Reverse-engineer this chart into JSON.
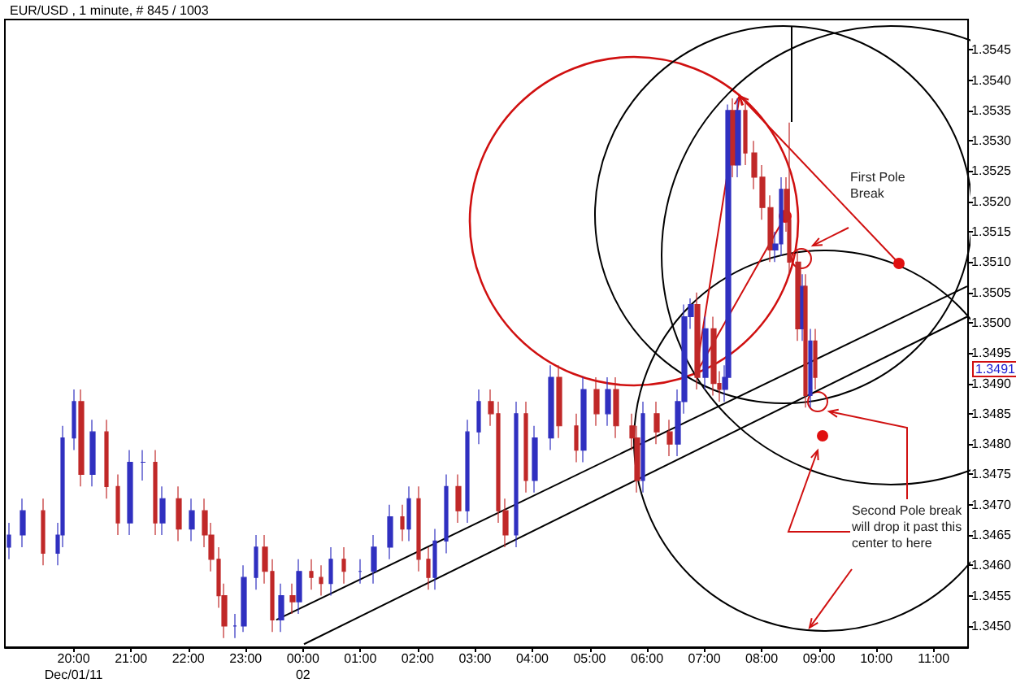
{
  "chart_data": {
    "type": "candlestick",
    "title": "EUR/USD , 1 minute, # 845 / 1003",
    "marker": "none",
    "colors": [
      "#3030c0",
      "#3030c0",
      "#c02828",
      "#3030c0",
      "#3030c0",
      "#3030c0",
      "#c02828",
      "#3030c0",
      "#c02828",
      "#c02828",
      "#3030c0",
      "#3030c0",
      "#c02828",
      "#3030c0",
      "#c02828",
      "#3030c0",
      "#c02828",
      "#c02828",
      "#c02828",
      "#c02828",
      "#3030c0",
      "#3030c0",
      "#3030c0",
      "#c02828",
      "#c02828",
      "#3030c0",
      "#c02828",
      "#3030c0",
      "#c02828",
      "#c02828",
      "#3030c0",
      "#c02828",
      "#3030c0",
      "#3030c0",
      "#3030c0",
      "#c02828",
      "#3030c0",
      "#c02828",
      "#c02828",
      "#3030c0",
      "#3030c0",
      "#c02828",
      "#3030c0",
      "#3030c0",
      "#c02828",
      "#c02828",
      "#c02828",
      "#3030c0",
      "#c02828",
      "#3030c0",
      "#3030c0",
      "#c02828",
      "#c02828",
      "#3030c0",
      "#c02828",
      "#3030c0",
      "#c02828",
      "#c02828",
      "#c02828",
      "#3030c0",
      "#c02828",
      "#c02828",
      "#3030c0",
      "#3030c0",
      "#3030c0",
      "#c02828",
      "#3030c0",
      "#c02828",
      "#c02828",
      "#3030c0",
      "#3030c0",
      "#c02828",
      "#3030c0",
      "#c02828",
      "#c02828",
      "#c02828",
      "#c02828",
      "#3030c0",
      "#3030c0",
      "#c02828",
      "#c02828",
      "#c02828",
      "#3030c0",
      "#c02828",
      "#3030c0",
      "#c02828"
    ],
    "xlim": [
      "--12-01T18:48",
      "--12-02T11:36"
    ],
    "xticks": [
      {
        "value": "--12-01T20:00",
        "label": "20:00\nDec/01/11"
      },
      {
        "value": "--12-01T21:00",
        "label": "21:00"
      },
      {
        "value": "--12-01T22:00",
        "label": "22:00"
      },
      {
        "value": "--12-01T23:00",
        "label": "23:00"
      },
      {
        "value": "--12-02T00:00",
        "label": "00:00\n02"
      },
      {
        "value": "--12-02T01:00",
        "label": "01:00"
      },
      {
        "value": "--12-02T02:00",
        "label": "02:00"
      },
      {
        "value": "--12-02T03:00",
        "label": "03:00"
      },
      {
        "value": "--12-02T04:00",
        "label": "04:00"
      },
      {
        "value": "--12-02T05:00",
        "label": "05:00"
      },
      {
        "value": "--12-02T06:00",
        "label": "06:00"
      },
      {
        "value": "--12-02T07:00",
        "label": "07:00"
      },
      {
        "value": "--12-02T08:00",
        "label": "08:00"
      },
      {
        "value": "--12-02T09:00",
        "label": "09:00"
      },
      {
        "value": "--12-02T10:00",
        "label": "10:00"
      },
      {
        "value": "--12-02T11:00",
        "label": "11:00"
      }
    ],
    "ylim": [
      1.34465,
      1.355
    ],
    "yticks": [
      {
        "value": 1.345,
        "label": "1.3450"
      },
      {
        "value": 1.3455,
        "label": "1.3455"
      },
      {
        "value": 1.346,
        "label": "1.3460"
      },
      {
        "value": 1.3465,
        "label": "1.3465"
      },
      {
        "value": 1.347,
        "label": "1.3470"
      },
      {
        "value": 1.3475,
        "label": "1.3475"
      },
      {
        "value": 1.348,
        "label": "1.3480"
      },
      {
        "value": 1.3485,
        "label": "1.3485"
      },
      {
        "value": 1.349,
        "label": "1.3490"
      },
      {
        "value": 1.3495,
        "label": "1.3495"
      },
      {
        "value": 1.35,
        "label": "1.3500"
      },
      {
        "value": 1.3505,
        "label": "1.3505"
      },
      {
        "value": 1.351,
        "label": "1.3510"
      },
      {
        "value": 1.3515,
        "label": "1.3515"
      },
      {
        "value": 1.352,
        "label": "1.3520"
      },
      {
        "value": 1.3525,
        "label": "1.3525"
      },
      {
        "value": 1.353,
        "label": "1.3530"
      },
      {
        "value": 1.3535,
        "label": "1.3535"
      },
      {
        "value": 1.354,
        "label": "1.3540"
      },
      {
        "value": 1.3545,
        "label": "1.3545"
      }
    ],
    "x": [
      "--12-01T18:52",
      "--12-01T19:07",
      "--12-01T19:28",
      "--12-01T19:43",
      "--12-01T19:48",
      "--12-01T20:00",
      "--12-01T20:08",
      "--12-01T20:20",
      "--12-01T20:34",
      "--12-01T20:46",
      "--12-01T20:59",
      "--12-01T21:13",
      "--12-01T21:25",
      "--12-01T21:33",
      "--12-01T21:50",
      "--12-01T22:04",
      "--12-01T22:17",
      "--12-01T22:24",
      "--12-01T22:32",
      "--12-01T22:38",
      "--12-01T22:49",
      "--12-01T22:58",
      "--12-01T23:11",
      "--12-01T23:20",
      "--12-01T23:28",
      "--12-01T23:37",
      "--12-01T23:49",
      "--12-01T23:56",
      "--12-02T00:09",
      "--12-02T00:19",
      "--12-02T00:29",
      "--12-02T00:43",
      "--12-02T01:00",
      "--12-02T01:14",
      "--12-02T01:31",
      "--12-02T01:44",
      "--12-02T01:51",
      "--12-02T02:01",
      "--12-02T02:11",
      "--12-02T02:18",
      "--12-02T02:30",
      "--12-02T02:43",
      "--12-02T02:52",
      "--12-02T03:04",
      "--12-02T03:17",
      "--12-02T03:24",
      "--12-02T03:32",
      "--12-02T03:43",
      "--12-02T03:53",
      "--12-02T04:03",
      "--12-02T04:20",
      "--12-02T04:28",
      "--12-02T04:46",
      "--12-02T04:54",
      "--12-02T05:07",
      "--12-02T05:19",
      "--12-02T05:28",
      "--12-02T05:45",
      "--12-02T05:50",
      "--12-02T05:56",
      "--12-02T06:10",
      "--12-02T06:24",
      "--12-02T06:32",
      "--12-02T06:39",
      "--12-02T06:46",
      "--12-02T06:53",
      "--12-02T07:01",
      "--12-02T07:10",
      "--12-02T07:16",
      "--12-02T07:22",
      "--12-02T07:25",
      "--12-02T07:30",
      "--12-02T07:35",
      "--12-02T07:43",
      "--12-02T07:52",
      "--12-02T08:01",
      "--12-02T08:09",
      "--12-02T08:14",
      "--12-02T08:20",
      "--12-02T08:26",
      "--12-02T08:29",
      "--12-02T08:38",
      "--12-02T08:43",
      "--12-02T08:46",
      "--12-02T08:51",
      "--12-02T08:56"
    ],
    "ohlc": [
      [
        1.3463,
        1.3467,
        1.3461,
        1.3465
      ],
      [
        1.3465,
        1.3471,
        1.3463,
        1.3469
      ],
      [
        1.3469,
        1.3471,
        1.346,
        1.3462
      ],
      [
        1.3462,
        1.3467,
        1.346,
        1.3465
      ],
      [
        1.3465,
        1.3483,
        1.3463,
        1.3481
      ],
      [
        1.3481,
        1.3489,
        1.3479,
        1.3487
      ],
      [
        1.3487,
        1.3489,
        1.3473,
        1.3475
      ],
      [
        1.3475,
        1.3484,
        1.3473,
        1.3482
      ],
      [
        1.3482,
        1.3484,
        1.3471,
        1.3473
      ],
      [
        1.3473,
        1.3475,
        1.3465,
        1.3467
      ],
      [
        1.3467,
        1.3479,
        1.3465,
        1.3477
      ],
      [
        1.3477,
        1.3479,
        1.3474,
        1.3477
      ],
      [
        1.3477,
        1.3479,
        1.3465,
        1.3467
      ],
      [
        1.3467,
        1.3473,
        1.3465,
        1.3471
      ],
      [
        1.3471,
        1.3473,
        1.3464,
        1.3466
      ],
      [
        1.3466,
        1.3471,
        1.3464,
        1.3469
      ],
      [
        1.3469,
        1.3471,
        1.3463,
        1.3465
      ],
      [
        1.3465,
        1.3467,
        1.3459,
        1.3461
      ],
      [
        1.3461,
        1.3463,
        1.3453,
        1.3455
      ],
      [
        1.3455,
        1.3457,
        1.3448,
        1.345
      ],
      [
        1.345,
        1.3452,
        1.3448,
        1.345
      ],
      [
        1.345,
        1.346,
        1.3449,
        1.3458
      ],
      [
        1.3458,
        1.3465,
        1.3456,
        1.3463
      ],
      [
        1.3463,
        1.3465,
        1.3457,
        1.3459
      ],
      [
        1.3459,
        1.3461,
        1.3449,
        1.3451
      ],
      [
        1.3451,
        1.3457,
        1.3449,
        1.3455
      ],
      [
        1.3455,
        1.3457,
        1.3452,
        1.3454
      ],
      [
        1.3454,
        1.3461,
        1.3452,
        1.3459
      ],
      [
        1.3459,
        1.3461,
        1.3456,
        1.3458
      ],
      [
        1.3458,
        1.346,
        1.3455,
        1.3457
      ],
      [
        1.3457,
        1.3463,
        1.3455,
        1.3461
      ],
      [
        1.3461,
        1.3463,
        1.3457,
        1.3459
      ],
      [
        1.3459,
        1.3461,
        1.3457,
        1.3459
      ],
      [
        1.3459,
        1.3465,
        1.3457,
        1.3463
      ],
      [
        1.3463,
        1.347,
        1.3461,
        1.3468
      ],
      [
        1.3468,
        1.347,
        1.3464,
        1.3466
      ],
      [
        1.3466,
        1.3473,
        1.3464,
        1.3471
      ],
      [
        1.3471,
        1.3473,
        1.3459,
        1.3461
      ],
      [
        1.3461,
        1.3463,
        1.3456,
        1.3458
      ],
      [
        1.3458,
        1.3466,
        1.3456,
        1.3464
      ],
      [
        1.3464,
        1.3475,
        1.3462,
        1.3473
      ],
      [
        1.3473,
        1.3475,
        1.3467,
        1.3469
      ],
      [
        1.3469,
        1.3484,
        1.3467,
        1.3482
      ],
      [
        1.3482,
        1.3489,
        1.348,
        1.3487
      ],
      [
        1.3487,
        1.3489,
        1.3483,
        1.3485
      ],
      [
        1.3485,
        1.3487,
        1.3467,
        1.3469
      ],
      [
        1.3469,
        1.3471,
        1.3463,
        1.3465
      ],
      [
        1.3465,
        1.3487,
        1.3463,
        1.3485
      ],
      [
        1.3485,
        1.3487,
        1.3472,
        1.3474
      ],
      [
        1.3474,
        1.3483,
        1.3472,
        1.3481
      ],
      [
        1.3481,
        1.3493,
        1.3479,
        1.3491
      ],
      [
        1.3491,
        1.3493,
        1.3481,
        1.3483
      ],
      [
        1.3483,
        1.3485,
        1.3477,
        1.3479
      ],
      [
        1.3479,
        1.3491,
        1.3477,
        1.3489
      ],
      [
        1.3489,
        1.3491,
        1.3483,
        1.3485
      ],
      [
        1.3485,
        1.3491,
        1.3483,
        1.3489
      ],
      [
        1.3489,
        1.3491,
        1.3481,
        1.3483
      ],
      [
        1.3483,
        1.3485,
        1.3479,
        1.3481
      ],
      [
        1.3481,
        1.3483,
        1.3472,
        1.3474
      ],
      [
        1.3474,
        1.3487,
        1.3472,
        1.3485
      ],
      [
        1.3485,
        1.3487,
        1.348,
        1.3482
      ],
      [
        1.3482,
        1.3484,
        1.3478,
        1.348
      ],
      [
        1.348,
        1.3489,
        1.3478,
        1.3487
      ],
      [
        1.3487,
        1.3503,
        1.3485,
        1.3501
      ],
      [
        1.3501,
        1.3504,
        1.3499,
        1.3503
      ],
      [
        1.3503,
        1.3505,
        1.3489,
        1.3491
      ],
      [
        1.3491,
        1.3501,
        1.3489,
        1.3499
      ],
      [
        1.3499,
        1.3501,
        1.3488,
        1.349
      ],
      [
        1.349,
        1.3492,
        1.3487,
        1.3489
      ],
      [
        1.3489,
        1.3493,
        1.3487,
        1.3491
      ],
      [
        1.3491,
        1.3536,
        1.3489,
        1.3535
      ],
      [
        1.3535,
        1.3537,
        1.3524,
        1.3526
      ],
      [
        1.3526,
        1.3537,
        1.3524,
        1.3535
      ],
      [
        1.3535,
        1.3537,
        1.3526,
        1.3528
      ],
      [
        1.3528,
        1.353,
        1.3522,
        1.3524
      ],
      [
        1.3524,
        1.3526,
        1.3517,
        1.3519
      ],
      [
        1.3519,
        1.3521,
        1.351,
        1.3512
      ],
      [
        1.3512,
        1.3515,
        1.351,
        1.3513
      ],
      [
        1.3513,
        1.3524,
        1.3511,
        1.3522
      ],
      [
        1.3522,
        1.3524,
        1.3515,
        1.3517
      ],
      [
        1.3517,
        1.3533,
        1.3508,
        1.351
      ],
      [
        1.351,
        1.3512,
        1.3497,
        1.3499
      ],
      [
        1.3499,
        1.3508,
        1.3497,
        1.3506
      ],
      [
        1.3506,
        1.3508,
        1.3486,
        1.3488
      ],
      [
        1.3488,
        1.3499,
        1.3486,
        1.3497
      ],
      [
        1.3497,
        1.3499,
        1.3489,
        1.3491
      ]
    ],
    "series": [
      {
        "type": "line",
        "color": "#000000",
        "x": [
          "--12-01T23:32",
          "--12-02T11:35"
        ],
        "values": [
          1.3451,
          1.3506
        ]
      },
      {
        "type": "line",
        "color": "#000000",
        "x": [
          "--12-02T00:01",
          "--12-02T11:35"
        ],
        "values": [
          1.3447,
          1.3501
        ]
      }
    ],
    "annotations": [
      "First Pole Break",
      "Second Pole break will drop it past this center to here",
      "1.3491"
    ]
  }
}
